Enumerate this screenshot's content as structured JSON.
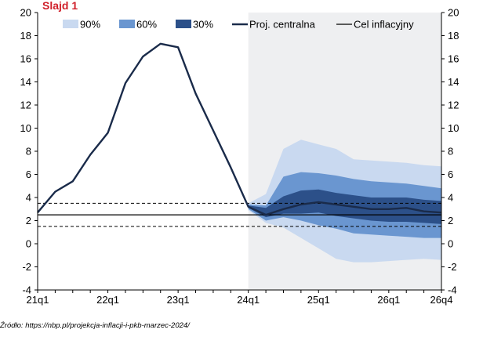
{
  "slide_label": "Slajd 1",
  "source_text": "Źródło: https://nbp.pl/projekcja-inflacji-i-pkb-marzec-2024/",
  "colors": {
    "band90": "#c9d9f0",
    "band60": "#6a96d0",
    "band30": "#2c5089",
    "central": "#1a2b4a",
    "target": "#000000",
    "projection_shade": "#eeeff1",
    "title_red": "#d01f2a"
  },
  "chart_data": {
    "type": "area",
    "title": "",
    "xlabel": "",
    "ylabel": "",
    "ylim": [
      -4,
      20
    ],
    "yticks": [
      -4,
      -2,
      0,
      2,
      4,
      6,
      8,
      10,
      12,
      14,
      16,
      18,
      20
    ],
    "x_tick_labels": [
      "21q1",
      "22q1",
      "23q1",
      "24q1",
      "25q1",
      "26q1",
      "26q4"
    ],
    "x_tick_index": [
      0,
      4,
      8,
      12,
      16,
      20,
      23
    ],
    "quarters": [
      "21q1",
      "21q2",
      "21q3",
      "21q4",
      "22q1",
      "22q2",
      "22q3",
      "22q4",
      "23q1",
      "23q2",
      "23q3",
      "23q4",
      "24q1",
      "24q2",
      "24q3",
      "24q4",
      "25q1",
      "25q2",
      "25q3",
      "25q4",
      "26q1",
      "26q2",
      "26q3",
      "26q4"
    ],
    "projection_start": "24q1",
    "legend": [
      "90%",
      "60%",
      "30%",
      "Proj. centralna",
      "Cel inflacyjny"
    ],
    "series": [
      {
        "name": "Proj. centralna",
        "values": [
          2.7,
          4.5,
          5.4,
          7.7,
          9.6,
          13.9,
          16.2,
          17.3,
          17.0,
          13.0,
          9.8,
          6.6,
          3.2,
          2.5,
          3.0,
          3.4,
          3.6,
          3.4,
          3.2,
          3.0,
          3.0,
          3.1,
          2.8,
          2.7
        ]
      }
    ],
    "fan_bands": {
      "start_index": 12,
      "90": {
        "low": [
          2.9,
          1.8,
          1.4,
          0.5,
          -0.4,
          -1.3,
          -1.6,
          -1.6,
          -1.5,
          -1.4,
          -1.3,
          -1.4
        ],
        "high": [
          3.5,
          4.3,
          8.2,
          9.0,
          8.6,
          8.2,
          7.3,
          7.2,
          7.1,
          7.0,
          6.8,
          6.7
        ]
      },
      "60": {
        "low": [
          3.0,
          2.0,
          2.3,
          2.0,
          1.6,
          1.3,
          0.9,
          0.8,
          0.7,
          0.6,
          0.5,
          0.5
        ],
        "high": [
          3.4,
          3.3,
          5.8,
          6.2,
          6.1,
          5.9,
          5.6,
          5.4,
          5.3,
          5.2,
          5.0,
          4.8
        ]
      },
      "30": {
        "low": [
          3.1,
          2.3,
          2.6,
          2.6,
          2.7,
          2.4,
          2.2,
          2.0,
          1.9,
          1.9,
          1.8,
          1.7
        ],
        "high": [
          3.3,
          3.1,
          4.1,
          4.6,
          4.7,
          4.4,
          4.2,
          4.0,
          4.0,
          4.0,
          3.8,
          3.7
        ]
      }
    },
    "target_lines": {
      "center": 2.5,
      "upper": 3.5,
      "lower": 1.5
    },
    "grid": false,
    "legend_position": "top"
  }
}
